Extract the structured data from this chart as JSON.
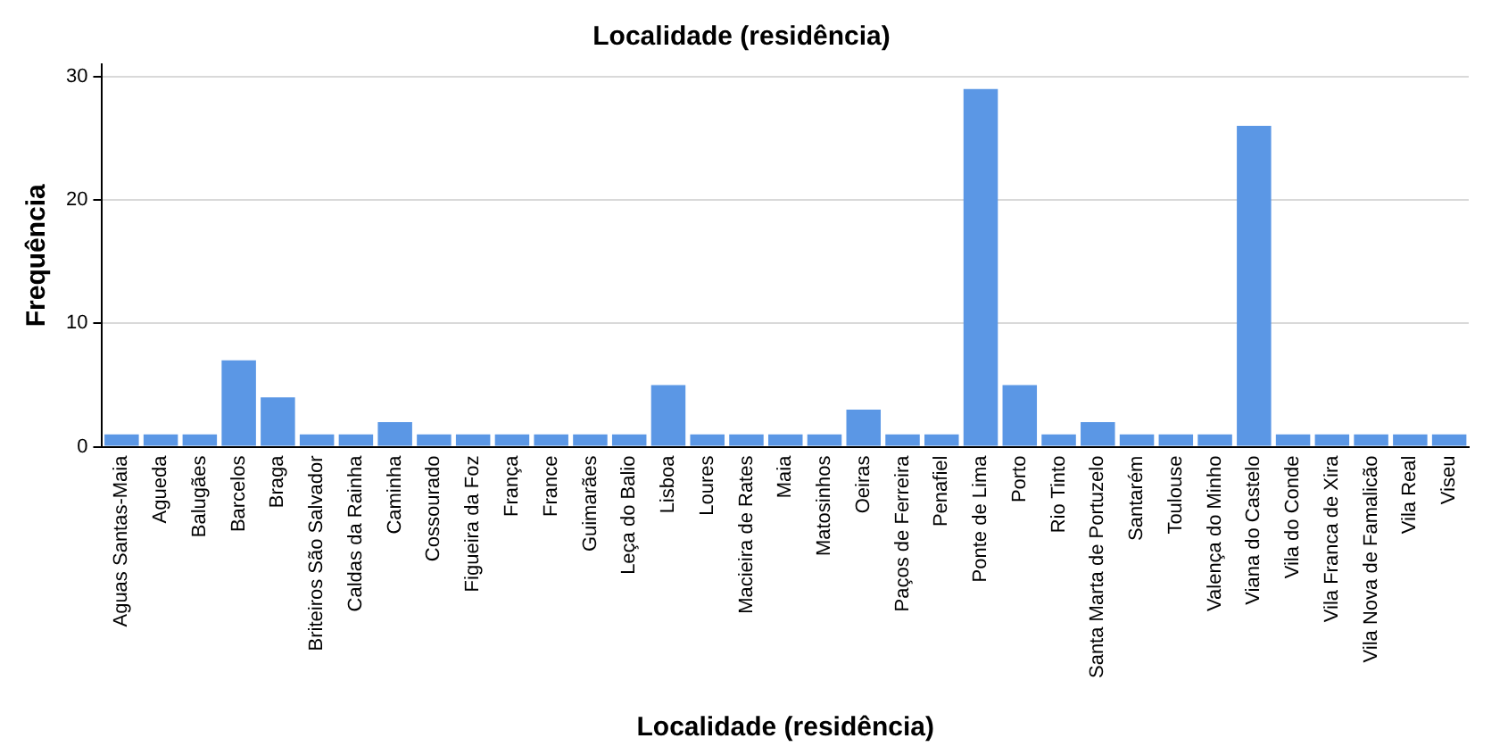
{
  "chart_data": {
    "type": "bar",
    "title": "Localidade (residência)",
    "xlabel": "Localidade (residência)",
    "ylabel": "Frequência",
    "categories": [
      "Aguas Santas-Maia",
      "Agueda",
      "Balugães",
      "Barcelos",
      "Braga",
      "Briteiros São Salvador",
      "Caldas da Rainha",
      "Caminha",
      "Cossourado",
      "Figueira da Foz",
      "França",
      "France",
      "Guimarães",
      "Leça do Balio",
      "Lisboa",
      "Loures",
      "Macieira de Rates",
      "Maia",
      "Matosinhos",
      "Oeiras",
      "Paços de Ferreira",
      "Penafiel",
      "Ponte de Lima",
      "Porto",
      "Rio Tinto",
      "Santa Marta de Portuzelo",
      "Santarém",
      "Toulouse",
      "Valença do Minho",
      "Viana do Castelo",
      "Vila do Conde",
      "Vila Franca de Xira",
      "Vila Nova de Famalicão",
      "Vila Real",
      "Viseu"
    ],
    "values": [
      1,
      1,
      1,
      7,
      4,
      1,
      1,
      2,
      1,
      1,
      1,
      1,
      1,
      1,
      5,
      1,
      1,
      1,
      1,
      3,
      1,
      1,
      29,
      5,
      1,
      2,
      1,
      1,
      1,
      26,
      1,
      1,
      1,
      1,
      1
    ],
    "color": "#5b97e5",
    "ylim": [
      0,
      31
    ],
    "yticks": [
      0,
      10,
      20,
      30
    ],
    "grid": "y"
  }
}
